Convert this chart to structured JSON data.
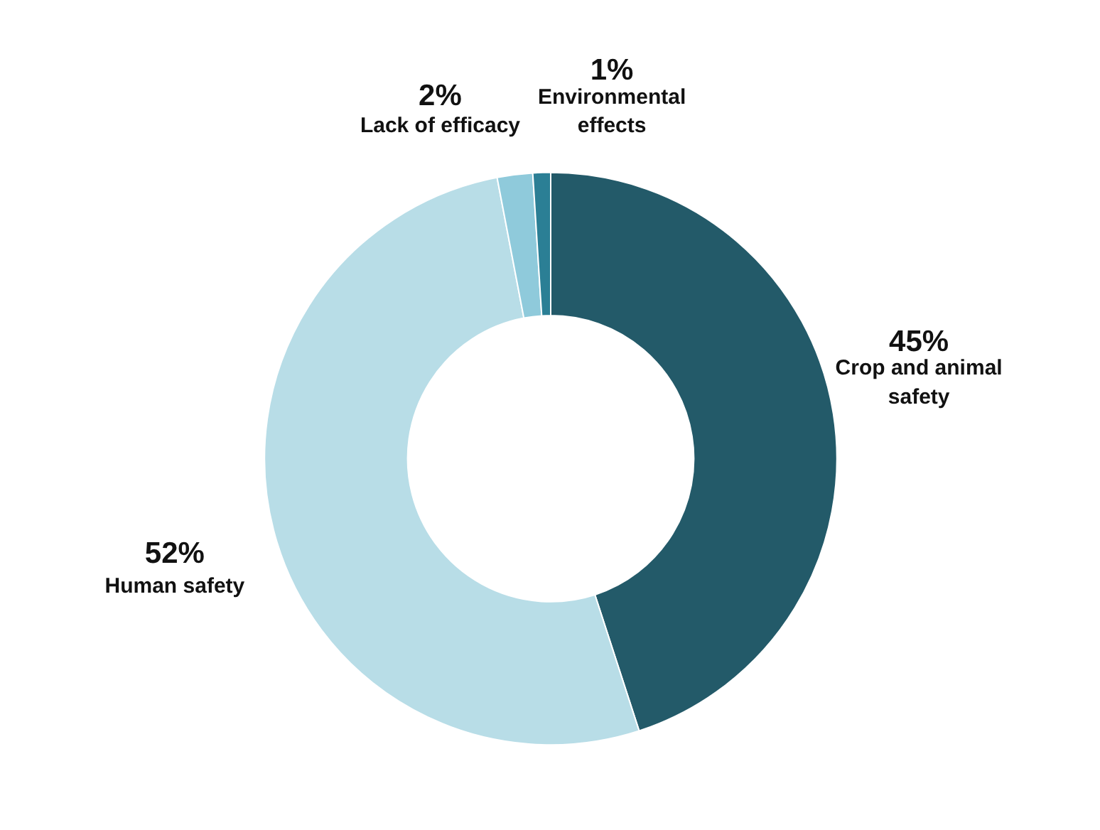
{
  "chart_data": {
    "type": "donut",
    "categories": [
      "Crop and animal\nsafety",
      "Human safety",
      "Lack of efficacy",
      "Environmental\neffects"
    ],
    "values": [
      45,
      52,
      2,
      1
    ],
    "colors": [
      "#235a69",
      "#b8dde7",
      "#8fcadb",
      "#2b7f95"
    ],
    "value_labels": [
      "45%",
      "52%",
      "2%",
      "1%"
    ]
  }
}
